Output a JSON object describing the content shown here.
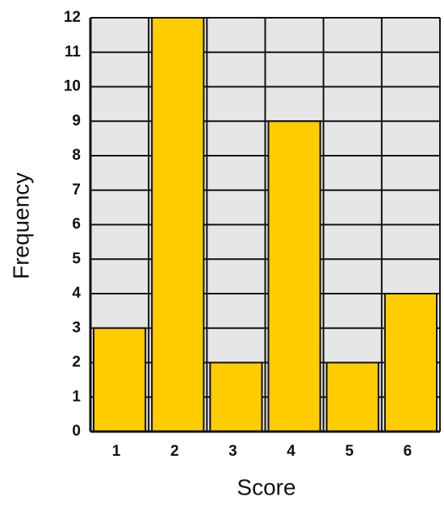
{
  "chart_data": {
    "type": "bar",
    "x_label": "Score",
    "y_label": "Frequency",
    "categories": [
      "1",
      "2",
      "3",
      "4",
      "5",
      "6"
    ],
    "values": [
      3,
      12,
      2,
      9,
      2,
      4
    ],
    "color": "#ffcc00",
    "ylim": [
      0,
      12
    ],
    "yticks": [
      0,
      1,
      2,
      3,
      4,
      5,
      6,
      7,
      8,
      9,
      10,
      11,
      12
    ],
    "grid": true
  }
}
